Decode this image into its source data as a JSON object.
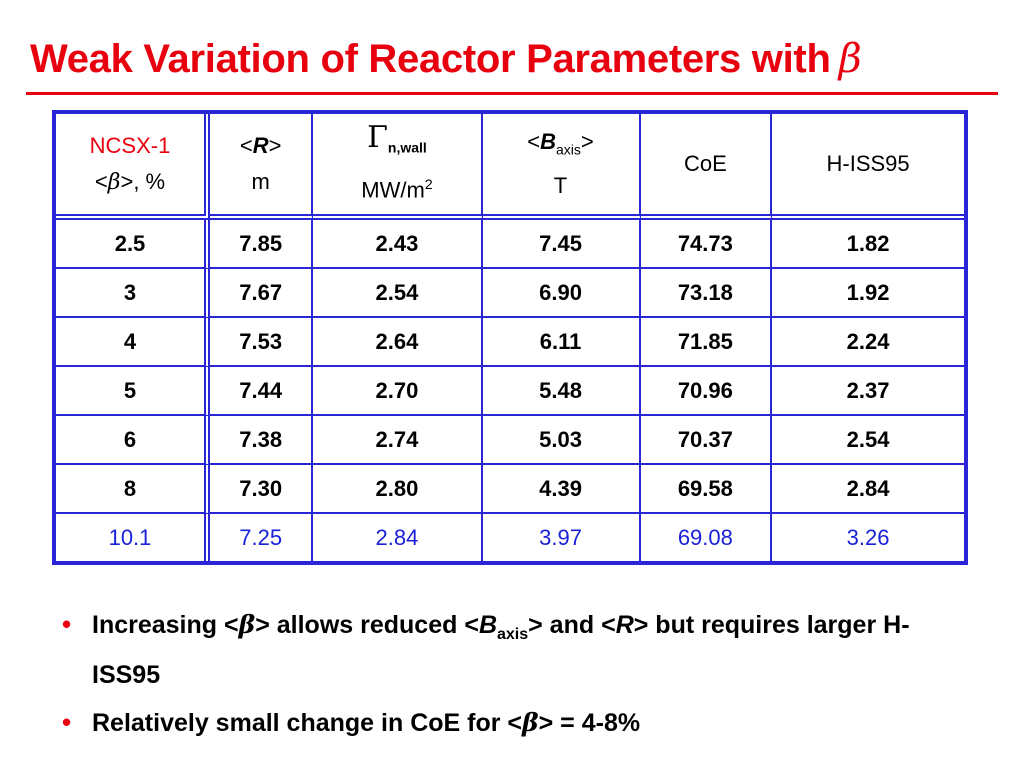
{
  "title": {
    "text": "Weak Variation of Reactor Parameters with",
    "symbol": "β"
  },
  "table": {
    "headers": [
      {
        "line1": "NCSX-1",
        "line2_pre": "<",
        "line2_sym": "β",
        "line2_post": ">, %"
      },
      {
        "line1_pre": "<",
        "line1_var": "R",
        "line1_post": ">",
        "line2": "m"
      },
      {
        "line1_sym": "Γ",
        "line1_sub": "n,wall",
        "line2": "MW/m",
        "line2_sup": "2"
      },
      {
        "line1_pre": "<",
        "line1_var": "B",
        "line1_sub": "axis",
        "line1_post": ">",
        "line2": "T"
      },
      {
        "line1": "CoE"
      },
      {
        "line1": "H-ISS95"
      }
    ],
    "rows": [
      [
        "2.5",
        "7.85",
        "2.43",
        "7.45",
        "74.73",
        "1.82"
      ],
      [
        "3",
        "7.67",
        "2.54",
        "6.90",
        "73.18",
        "1.92"
      ],
      [
        "4",
        "7.53",
        "2.64",
        "6.11",
        "71.85",
        "2.24"
      ],
      [
        "5",
        "7.44",
        "2.70",
        "5.48",
        "70.96",
        "2.37"
      ],
      [
        "6",
        "7.38",
        "2.74",
        "5.03",
        "70.37",
        "2.54"
      ],
      [
        "8",
        "7.30",
        "2.80",
        "4.39",
        "69.58",
        "2.84"
      ],
      [
        "10.1",
        "7.25",
        "2.84",
        "3.97",
        "69.08",
        "3.26"
      ]
    ]
  },
  "bullets": [
    {
      "dot": "•",
      "p1": "Increasing <",
      "sym1": "β",
      "p2": "> allows reduced <",
      "var1": "B",
      "sub1": "axis",
      "p3": "> and <",
      "var2": "R",
      "p4": "> but requires larger H-ISS95"
    },
    {
      "dot": "•",
      "p1": "Relatively small change in CoE for <",
      "sym1": "β",
      "p2": "> = 4-8%"
    }
  ],
  "colors": {
    "title": "#e8000f",
    "table_border": "#2a25d6",
    "highlight_row": "#1a22d8",
    "bullet_dot": "#e8000f"
  }
}
